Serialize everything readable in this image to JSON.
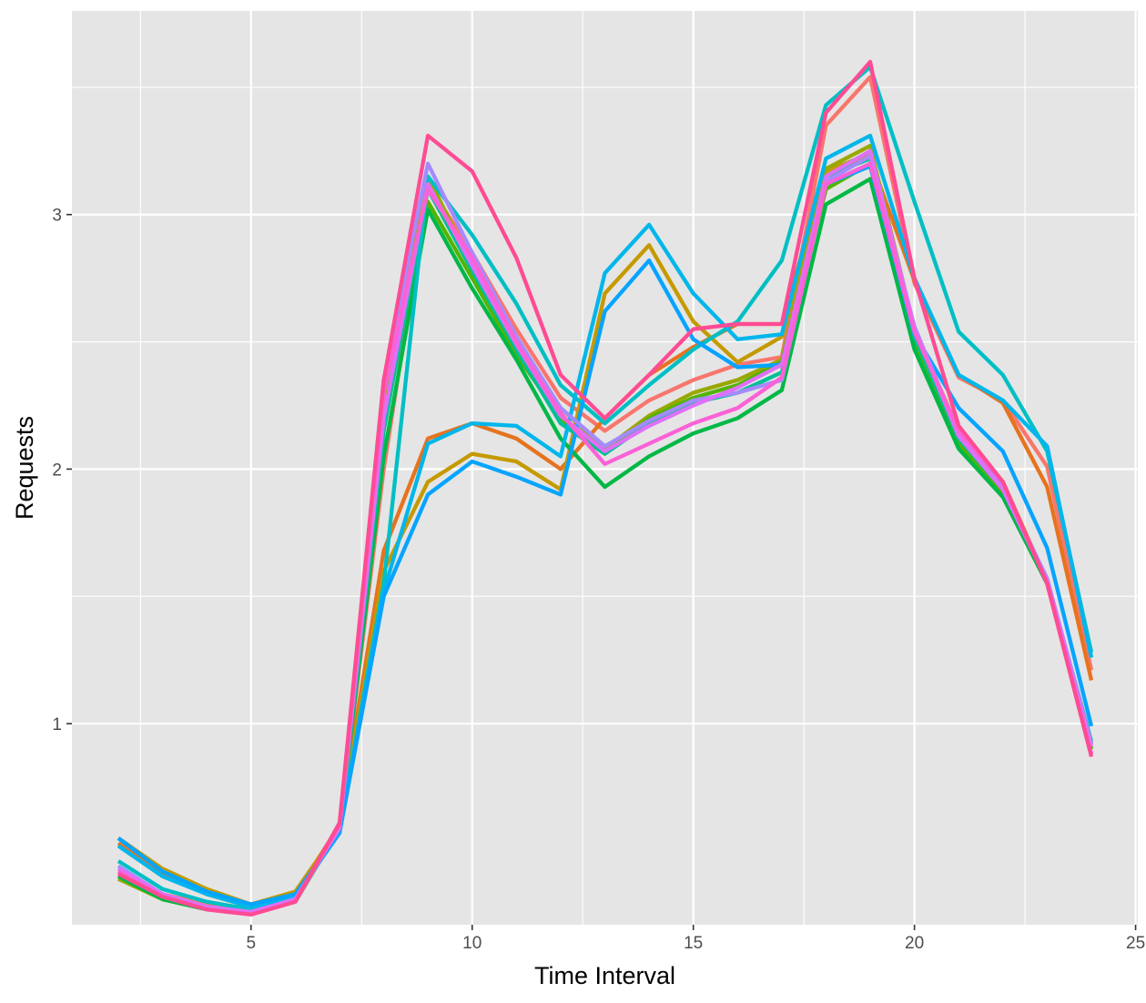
{
  "chart_data": {
    "type": "line",
    "title": "",
    "xlabel": "Time Interval",
    "ylabel": "Requests",
    "xlim": [
      0.95,
      25.05
    ],
    "ylim": [
      0.21,
      3.8
    ],
    "x_ticks": [
      5,
      10,
      15,
      20,
      25
    ],
    "x_minor_ticks": [
      2.5,
      7.5,
      12.5,
      17.5,
      22.5
    ],
    "y_ticks": [
      1,
      2,
      3
    ],
    "y_minor_ticks": [
      1.5,
      2.5,
      3.5
    ],
    "grid": true,
    "legend": "none",
    "background": "#e5e5e5",
    "x": [
      2,
      3,
      4,
      5,
      6,
      7,
      8,
      9,
      10,
      11,
      12,
      13,
      14,
      15,
      16,
      17,
      18,
      19,
      20,
      21,
      22,
      23,
      24
    ],
    "series": [
      {
        "color": "#f8766d",
        "values": [
          0.42,
          0.33,
          0.29,
          0.27,
          0.32,
          0.59,
          2.0,
          3.12,
          2.85,
          2.55,
          2.28,
          2.15,
          2.27,
          2.35,
          2.41,
          2.44,
          3.35,
          3.54,
          2.73,
          2.36,
          2.27,
          2.01,
          1.21
        ]
      },
      {
        "color": "#e6731f",
        "values": [
          0.53,
          0.41,
          0.33,
          0.28,
          0.33,
          0.6,
          1.68,
          2.12,
          2.18,
          2.12,
          2.0,
          2.2,
          2.37,
          2.48,
          2.57,
          2.57,
          3.18,
          3.22,
          2.74,
          2.37,
          2.26,
          1.93,
          1.17
        ]
      },
      {
        "color": "#c49a00",
        "values": [
          0.55,
          0.43,
          0.35,
          0.29,
          0.34,
          0.59,
          1.6,
          1.95,
          2.06,
          2.03,
          1.92,
          2.69,
          2.88,
          2.58,
          2.42,
          2.52,
          3.17,
          3.24,
          2.55,
          2.15,
          1.95,
          1.56,
          0.92
        ]
      },
      {
        "color": "#99a800",
        "values": [
          0.39,
          0.31,
          0.27,
          0.26,
          0.31,
          0.6,
          2.25,
          3.15,
          2.8,
          2.49,
          2.24,
          2.08,
          2.21,
          2.3,
          2.35,
          2.43,
          3.18,
          3.27,
          2.55,
          2.12,
          1.9,
          1.55,
          0.9
        ]
      },
      {
        "color": "#53b400",
        "values": [
          0.4,
          0.31,
          0.27,
          0.26,
          0.3,
          0.6,
          2.2,
          3.05,
          2.75,
          2.45,
          2.2,
          2.06,
          2.2,
          2.28,
          2.33,
          2.42,
          3.1,
          3.2,
          2.5,
          2.1,
          1.9,
          1.55,
          0.9
        ]
      },
      {
        "color": "#00b846",
        "values": [
          0.4,
          0.31,
          0.27,
          0.26,
          0.3,
          0.59,
          2.05,
          3.02,
          2.71,
          2.43,
          2.12,
          1.93,
          2.05,
          2.14,
          2.2,
          2.31,
          3.04,
          3.14,
          2.47,
          2.08,
          1.89,
          1.55,
          0.92
        ]
      },
      {
        "color": "#00c094",
        "values": [
          0.41,
          0.32,
          0.28,
          0.26,
          0.31,
          0.58,
          2.15,
          3.1,
          2.78,
          2.47,
          2.18,
          2.06,
          2.18,
          2.26,
          2.3,
          2.38,
          3.15,
          3.22,
          2.52,
          2.12,
          1.92,
          1.56,
          0.93
        ]
      },
      {
        "color": "#00bfc4",
        "values": [
          0.46,
          0.35,
          0.3,
          0.27,
          0.31,
          0.58,
          1.55,
          3.15,
          2.92,
          2.65,
          2.33,
          2.18,
          2.33,
          2.47,
          2.58,
          2.82,
          3.43,
          3.58,
          3.05,
          2.54,
          2.37,
          2.07,
          1.28
        ]
      },
      {
        "color": "#00b6eb",
        "values": [
          0.52,
          0.4,
          0.33,
          0.28,
          0.32,
          0.57,
          1.52,
          2.1,
          2.18,
          2.17,
          2.05,
          2.77,
          2.96,
          2.69,
          2.51,
          2.53,
          3.22,
          3.31,
          2.75,
          2.37,
          2.27,
          2.09,
          1.26
        ]
      },
      {
        "color": "#06a4ff",
        "values": [
          0.55,
          0.42,
          0.34,
          0.29,
          0.33,
          0.57,
          1.5,
          1.9,
          2.03,
          1.97,
          1.9,
          2.62,
          2.82,
          2.51,
          2.4,
          2.41,
          3.12,
          3.19,
          2.53,
          2.24,
          2.07,
          1.69,
          0.99
        ]
      },
      {
        "color": "#a58aff",
        "values": [
          0.44,
          0.33,
          0.28,
          0.26,
          0.31,
          0.59,
          2.35,
          3.2,
          2.85,
          2.52,
          2.24,
          2.09,
          2.19,
          2.27,
          2.3,
          2.35,
          3.13,
          3.23,
          2.56,
          2.14,
          1.93,
          1.57,
          0.92
        ]
      },
      {
        "color": "#df70f8",
        "values": [
          0.43,
          0.33,
          0.28,
          0.26,
          0.31,
          0.59,
          2.2,
          3.12,
          2.8,
          2.49,
          2.21,
          2.07,
          2.17,
          2.25,
          2.32,
          2.41,
          3.15,
          3.25,
          2.55,
          2.13,
          1.92,
          1.56,
          0.91
        ]
      },
      {
        "color": "#fb61d7",
        "values": [
          0.42,
          0.32,
          0.27,
          0.25,
          0.3,
          0.6,
          2.3,
          3.1,
          2.83,
          2.5,
          2.22,
          2.02,
          2.1,
          2.18,
          2.24,
          2.36,
          3.12,
          3.2,
          2.54,
          2.15,
          1.95,
          1.55,
          0.88
        ]
      },
      {
        "color": "#ff4b94",
        "values": [
          0.41,
          0.32,
          0.27,
          0.25,
          0.3,
          0.61,
          2.35,
          3.31,
          3.17,
          2.83,
          2.37,
          2.2,
          2.37,
          2.55,
          2.57,
          2.57,
          3.4,
          3.6,
          2.75,
          2.17,
          1.95,
          1.55,
          0.87
        ]
      }
    ]
  }
}
